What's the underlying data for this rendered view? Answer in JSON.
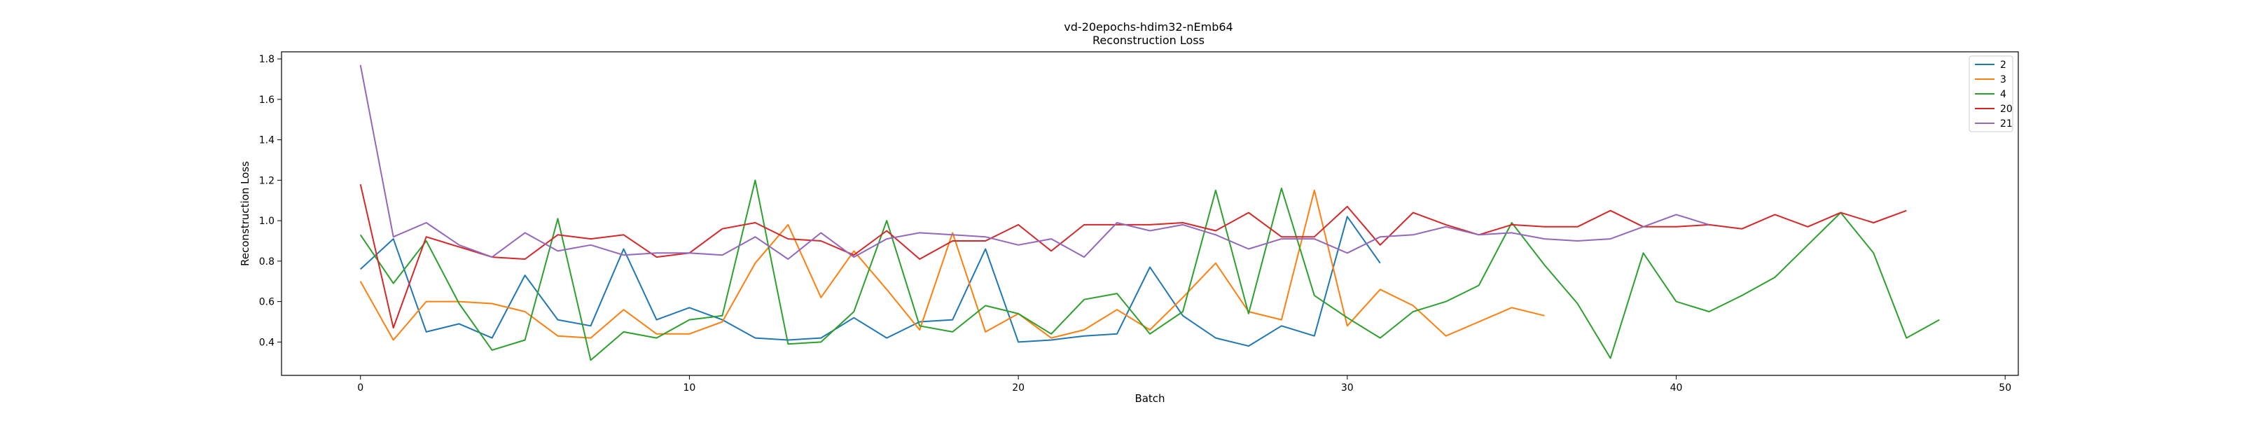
{
  "chart_data": {
    "type": "line",
    "title": "vd-20epochs-hdim32-nEmb64",
    "subtitle": "Reconstruction Loss",
    "xlabel": "Batch",
    "ylabel": "Reconstruction Loss",
    "xlim": [
      -2.4,
      50.4
    ],
    "ylim": [
      0.235,
      1.835
    ],
    "xticks": [
      0,
      10,
      20,
      30,
      40,
      50
    ],
    "yticks": [
      0.4,
      0.6,
      0.8,
      1.0,
      1.2,
      1.4,
      1.6,
      1.8
    ],
    "grid": false,
    "legend_position": "top-right",
    "series": [
      {
        "name": "2",
        "color": "#1f77b4",
        "values": [
          0.76,
          0.91,
          0.45,
          0.49,
          0.42,
          0.73,
          0.51,
          0.48,
          0.86,
          0.51,
          0.57,
          0.51,
          0.42,
          0.41,
          0.42,
          0.52,
          0.42,
          0.5,
          0.51,
          0.86,
          0.4,
          0.41,
          0.43,
          0.44,
          0.77,
          0.53,
          0.42,
          0.38,
          0.48,
          0.43,
          1.02,
          0.79
        ]
      },
      {
        "name": "3",
        "color": "#ff7f0e",
        "values": [
          0.7,
          0.41,
          0.6,
          0.6,
          0.59,
          0.55,
          0.43,
          0.42,
          0.56,
          0.44,
          0.44,
          0.5,
          0.79,
          0.98,
          0.62,
          0.85,
          0.66,
          0.46,
          0.94,
          0.45,
          0.54,
          0.42,
          0.46,
          0.56,
          0.46,
          0.62,
          0.79,
          0.55,
          0.51,
          1.15,
          0.48,
          0.66,
          0.58,
          0.43,
          0.5,
          0.57,
          0.53
        ]
      },
      {
        "name": "4",
        "color": "#2ca02c",
        "values": [
          0.93,
          0.69,
          0.9,
          0.59,
          0.36,
          0.41,
          1.01,
          0.31,
          0.45,
          0.42,
          0.51,
          0.53,
          1.2,
          0.39,
          0.4,
          0.55,
          1.0,
          0.48,
          0.45,
          0.58,
          0.54,
          0.44,
          0.61,
          0.64,
          0.44,
          0.55,
          1.15,
          0.54,
          1.16,
          0.63,
          0.52,
          0.42,
          0.55,
          0.6,
          0.68,
          0.99,
          0.78,
          0.59,
          0.32,
          0.84,
          0.6,
          0.55,
          0.63,
          0.72,
          0.88,
          1.04,
          0.84,
          0.42,
          0.51
        ]
      },
      {
        "name": "20",
        "color": "#d62728",
        "values": [
          1.18,
          0.47,
          0.92,
          0.87,
          0.82,
          0.81,
          0.93,
          0.91,
          0.93,
          0.82,
          0.84,
          0.96,
          0.99,
          0.91,
          0.9,
          0.83,
          0.95,
          0.81,
          0.9,
          0.9,
          0.98,
          0.85,
          0.98,
          0.98,
          0.98,
          0.99,
          0.95,
          1.04,
          0.92,
          0.92,
          1.07,
          0.88,
          1.04,
          0.98,
          0.93,
          0.98,
          0.97,
          0.97,
          1.05,
          0.97,
          0.97,
          0.98,
          0.96,
          1.03,
          0.97,
          1.04,
          0.99,
          1.05
        ]
      },
      {
        "name": "21",
        "color": "#9467bd",
        "values": [
          1.77,
          0.92,
          0.99,
          0.88,
          0.82,
          0.94,
          0.85,
          0.88,
          0.83,
          0.84,
          0.84,
          0.83,
          0.92,
          0.81,
          0.94,
          0.82,
          0.91,
          0.94,
          0.93,
          0.92,
          0.88,
          0.91,
          0.82,
          0.99,
          0.95,
          0.98,
          0.93,
          0.86,
          0.91,
          0.91,
          0.84,
          0.92,
          0.93,
          0.97,
          0.93,
          0.94,
          0.91,
          0.9,
          0.91,
          0.97,
          1.03,
          0.98
        ]
      }
    ]
  }
}
